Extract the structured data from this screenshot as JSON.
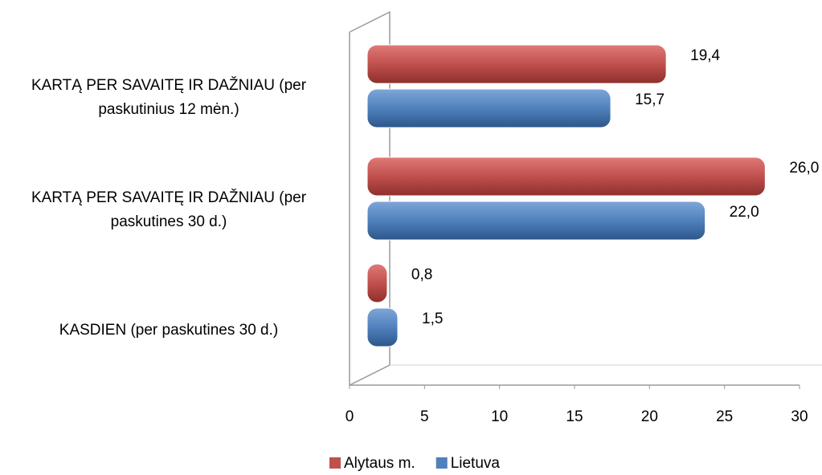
{
  "chart_data": {
    "type": "bar",
    "orientation": "horizontal",
    "categories": [
      "KARTĄ PER SAVAITĘ IR DAŽNIAU (per paskutinius 12 mėn.)",
      "KARTĄ PER SAVAITĘ IR DAŽNIAU (per paskutines 30 d.)",
      "KASDIEN (per paskutines 30 d.)"
    ],
    "series": [
      {
        "name": "Alytaus m.",
        "color": "#c0504d",
        "values": [
          19.4,
          26.0,
          0.8
        ],
        "value_labels": [
          "19,4",
          "26,0",
          "0,8"
        ]
      },
      {
        "name": "Lietuva",
        "color": "#4f81bd",
        "values": [
          15.7,
          22.0,
          1.5
        ],
        "value_labels": [
          "15,7",
          "22,0",
          "1,5"
        ]
      }
    ],
    "xlim": [
      0,
      30
    ],
    "xticks": [
      0,
      5,
      10,
      15,
      20,
      25,
      30
    ],
    "legend": "bottom"
  }
}
